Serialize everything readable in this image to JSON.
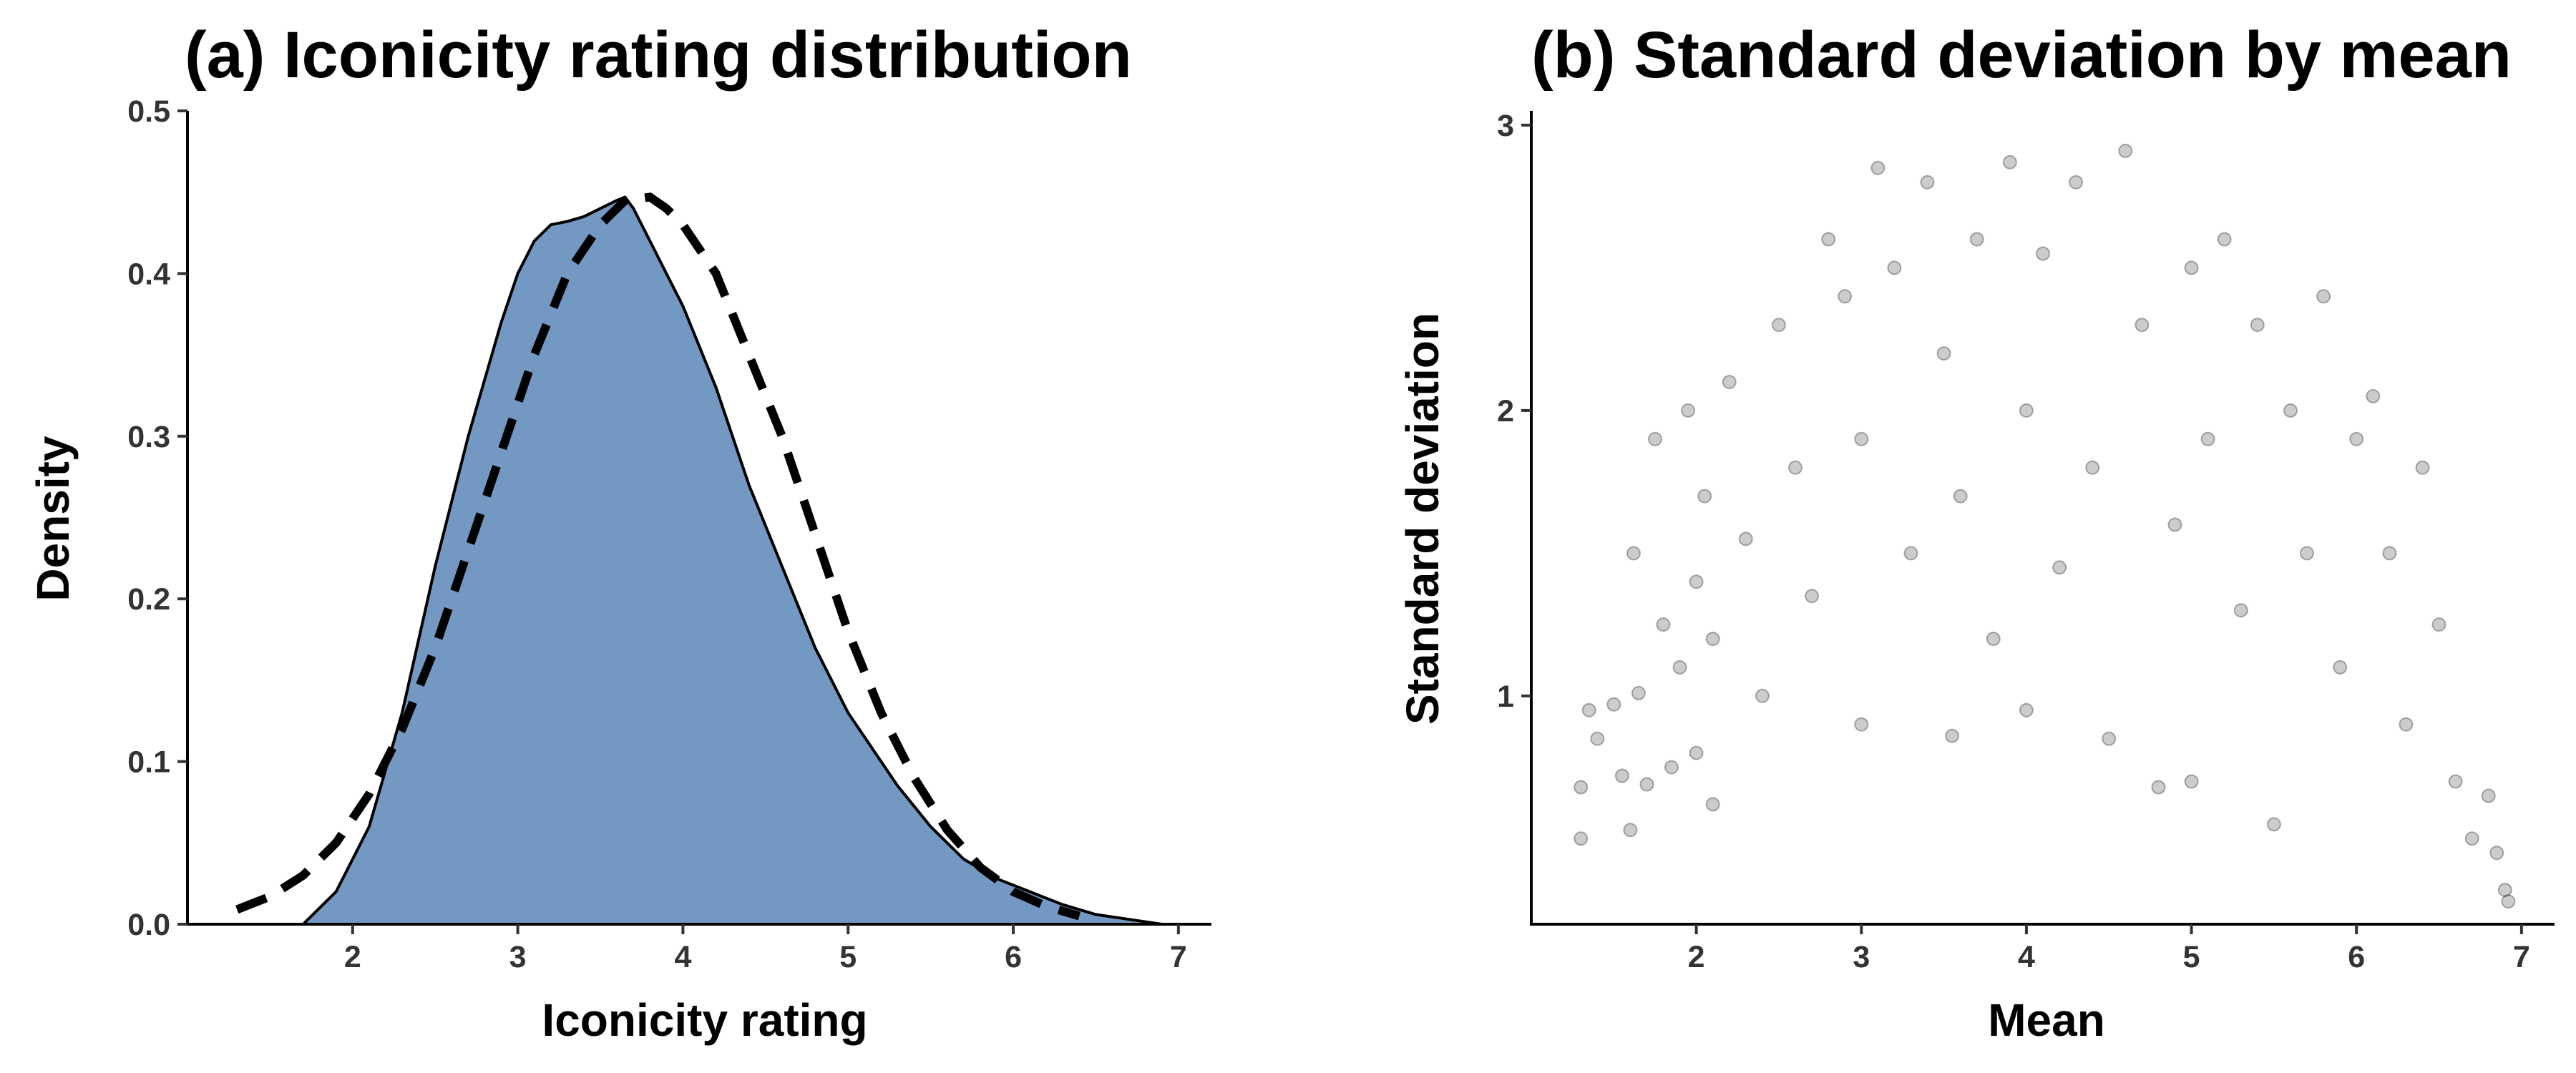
{
  "chart_data": [
    {
      "type": "area",
      "title": "(a) Iconicity rating distribution",
      "xlabel": "Iconicity rating",
      "ylabel": "Density",
      "xlim": [
        1.0,
        7.2
      ],
      "ylim": [
        0,
        0.5
      ],
      "xticks": [
        "2",
        "3",
        "4",
        "5",
        "6",
        "7"
      ],
      "yticks": [
        "0.0",
        "0.1",
        "0.2",
        "0.3",
        "0.4",
        "0.5"
      ],
      "grid": false,
      "fill_color": "#7399C2",
      "series": [
        {
          "style": "filled density",
          "x": [
            1.7,
            1.9,
            2.1,
            2.3,
            2.5,
            2.7,
            2.9,
            3.0,
            3.1,
            3.2,
            3.3,
            3.4,
            3.5,
            3.6,
            3.65,
            3.7,
            3.8,
            3.9,
            4.0,
            4.2,
            4.4,
            4.6,
            4.8,
            5.0,
            5.2,
            5.3,
            5.5,
            5.7,
            5.9,
            6.1,
            6.3,
            6.5,
            6.7,
            6.9
          ],
          "y": [
            0.0,
            0.02,
            0.06,
            0.13,
            0.22,
            0.3,
            0.37,
            0.4,
            0.42,
            0.43,
            0.432,
            0.435,
            0.44,
            0.445,
            0.447,
            0.44,
            0.42,
            0.4,
            0.38,
            0.33,
            0.27,
            0.22,
            0.17,
            0.13,
            0.1,
            0.085,
            0.06,
            0.04,
            0.028,
            0.02,
            0.012,
            0.006,
            0.003,
            0.0
          ]
        },
        {
          "style": "dashed normal curve",
          "x": [
            1.3,
            1.5,
            1.7,
            1.9,
            2.1,
            2.3,
            2.5,
            2.7,
            2.9,
            3.1,
            3.3,
            3.5,
            3.65,
            3.8,
            3.9,
            4.0,
            4.2,
            4.4,
            4.6,
            4.8,
            5.0,
            5.2,
            5.4,
            5.6,
            5.8,
            6.0,
            6.2,
            6.4
          ],
          "y": [
            0.009,
            0.017,
            0.03,
            0.05,
            0.08,
            0.12,
            0.17,
            0.23,
            0.29,
            0.35,
            0.4,
            0.43,
            0.445,
            0.447,
            0.44,
            0.43,
            0.4,
            0.35,
            0.3,
            0.24,
            0.18,
            0.13,
            0.09,
            0.058,
            0.035,
            0.02,
            0.011,
            0.005
          ]
        }
      ]
    },
    {
      "type": "scatter",
      "title": "(b) Standard deviation by mean",
      "xlabel": "Mean",
      "ylabel": "Standard deviation",
      "xlim": [
        1.0,
        7.2
      ],
      "ylim": [
        0.2,
        3.05
      ],
      "xticks": [
        "2",
        "3",
        "4",
        "5",
        "6",
        "7"
      ],
      "yticks": [
        "1",
        "2",
        "3"
      ],
      "grid": false,
      "point_color": "#000000",
      "point_opacity": 0.2,
      "points": [
        [
          1.3,
          0.5
        ],
        [
          1.3,
          0.68
        ],
        [
          1.35,
          0.95
        ],
        [
          1.4,
          0.85
        ],
        [
          1.5,
          0.97
        ],
        [
          1.55,
          0.72
        ],
        [
          1.6,
          0.53
        ],
        [
          1.62,
          1.5
        ],
        [
          1.65,
          1.01
        ],
        [
          1.7,
          0.69
        ],
        [
          1.75,
          1.9
        ],
        [
          1.8,
          1.25
        ],
        [
          1.85,
          0.75
        ],
        [
          1.9,
          1.1
        ],
        [
          1.95,
          2.0
        ],
        [
          2.0,
          1.4
        ],
        [
          2.0,
          0.8
        ],
        [
          2.05,
          1.7
        ],
        [
          2.1,
          1.2
        ],
        [
          2.1,
          0.62
        ],
        [
          2.2,
          2.1
        ],
        [
          2.3,
          1.55
        ],
        [
          2.4,
          1.0
        ],
        [
          2.5,
          2.3
        ],
        [
          2.6,
          1.8
        ],
        [
          2.7,
          1.35
        ],
        [
          2.8,
          2.6
        ],
        [
          2.9,
          2.4
        ],
        [
          3.0,
          1.9
        ],
        [
          3.0,
          0.9
        ],
        [
          3.1,
          2.85
        ],
        [
          3.2,
          2.5
        ],
        [
          3.3,
          1.5
        ],
        [
          3.4,
          2.8
        ],
        [
          3.5,
          2.2
        ],
        [
          3.55,
          0.86
        ],
        [
          3.6,
          1.7
        ],
        [
          3.7,
          2.6
        ],
        [
          3.8,
          1.2
        ],
        [
          3.9,
          2.87
        ],
        [
          4.0,
          2.0
        ],
        [
          4.0,
          0.95
        ],
        [
          4.1,
          2.55
        ],
        [
          4.2,
          1.45
        ],
        [
          4.3,
          2.8
        ],
        [
          4.4,
          1.8
        ],
        [
          4.5,
          0.85
        ],
        [
          4.6,
          2.91
        ],
        [
          4.7,
          2.3
        ],
        [
          4.8,
          0.68
        ],
        [
          4.9,
          1.6
        ],
        [
          5.0,
          2.5
        ],
        [
          5.0,
          0.7
        ],
        [
          5.1,
          1.9
        ],
        [
          5.2,
          2.6
        ],
        [
          5.3,
          1.3
        ],
        [
          5.4,
          2.3
        ],
        [
          5.5,
          0.55
        ],
        [
          5.6,
          2.0
        ],
        [
          5.7,
          1.5
        ],
        [
          5.8,
          2.4
        ],
        [
          5.9,
          1.1
        ],
        [
          6.0,
          1.9
        ],
        [
          6.1,
          2.05
        ],
        [
          6.2,
          1.5
        ],
        [
          6.3,
          0.9
        ],
        [
          6.4,
          1.8
        ],
        [
          6.5,
          1.25
        ],
        [
          6.6,
          0.7
        ],
        [
          6.7,
          0.5
        ],
        [
          6.8,
          0.65
        ],
        [
          6.85,
          0.45
        ],
        [
          6.9,
          0.32
        ],
        [
          6.92,
          0.28
        ]
      ]
    }
  ]
}
